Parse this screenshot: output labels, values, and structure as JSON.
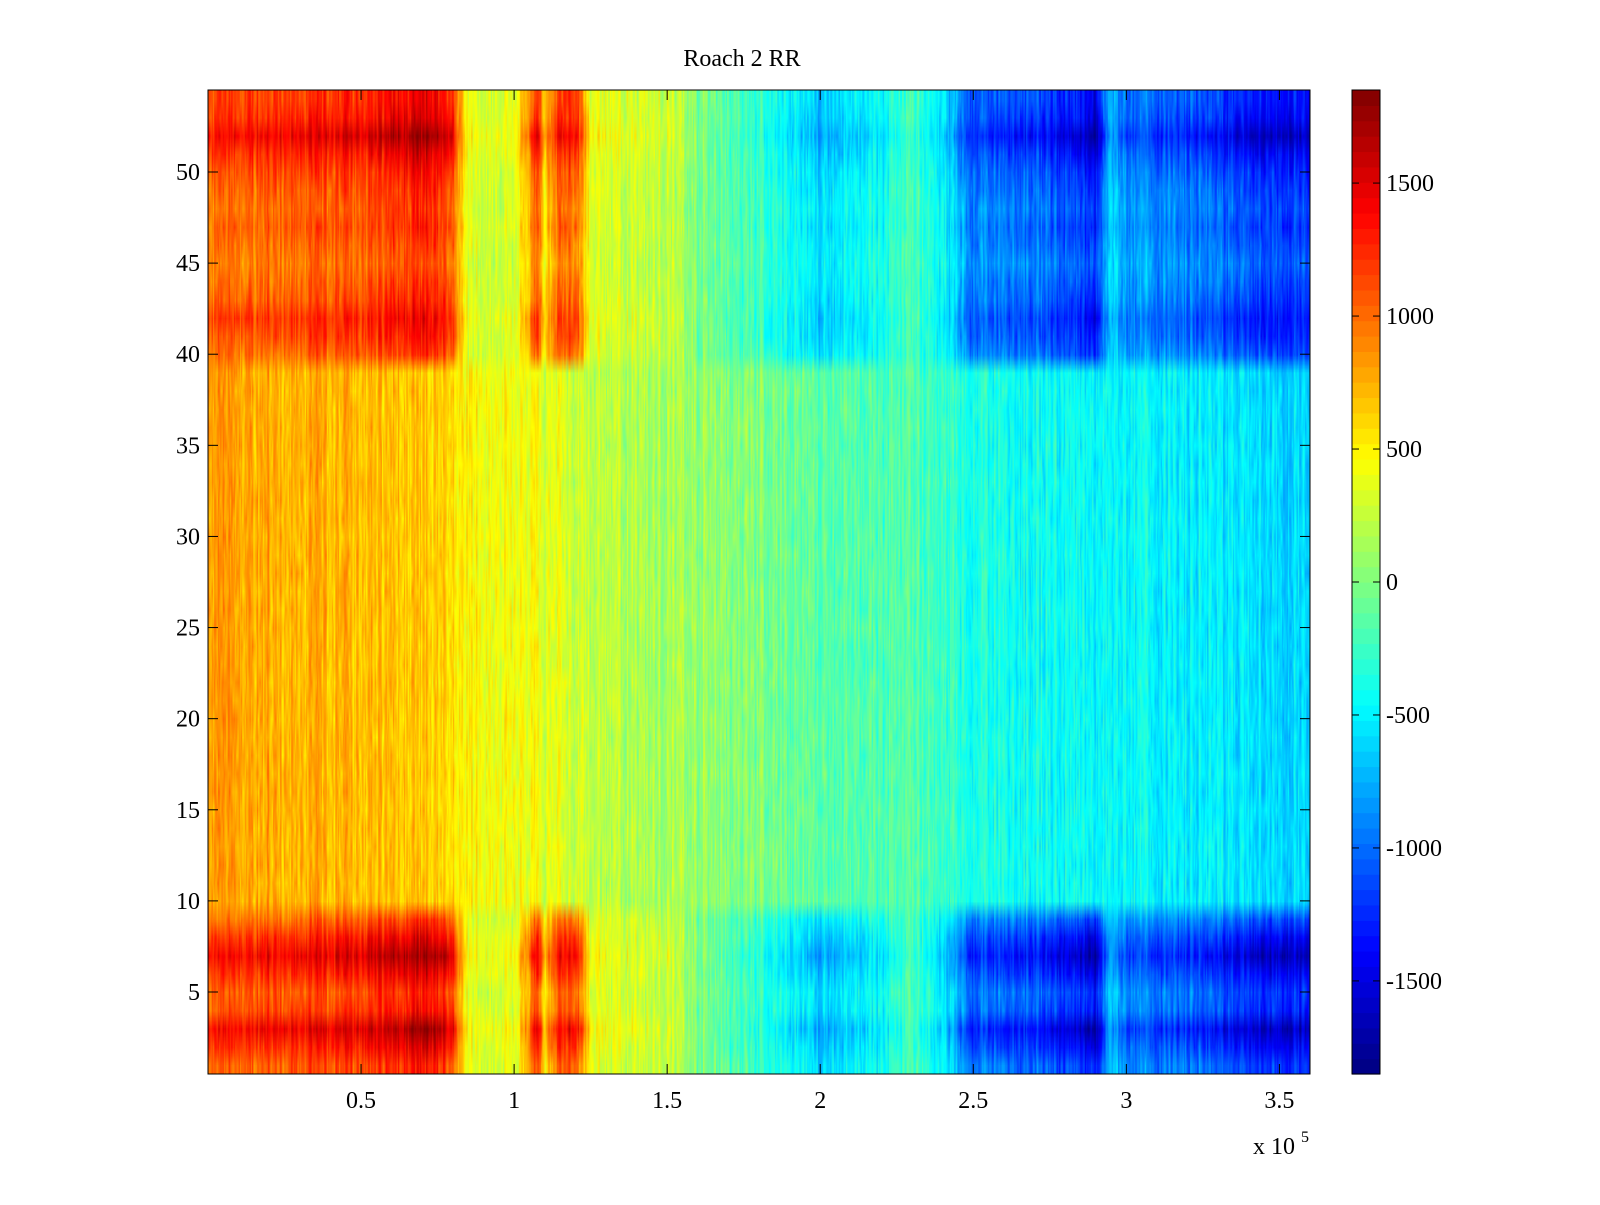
{
  "chart_data": {
    "type": "heatmap",
    "title": "Roach 2 RR",
    "xlabel": "",
    "ylabel": "",
    "x_exponent_label": "x 10",
    "x_exponent_power": "5",
    "xlim": [
      0,
      3.6
    ],
    "ylim": [
      0.5,
      54.5
    ],
    "x_ticks": [
      0.5,
      1,
      1.5,
      2,
      2.5,
      3,
      3.5
    ],
    "x_tick_labels": [
      "0.5",
      "1",
      "1.5",
      "2",
      "2.5",
      "3",
      "3.5"
    ],
    "y_ticks": [
      5,
      10,
      15,
      20,
      25,
      30,
      35,
      40,
      45,
      50
    ],
    "y_tick_labels": [
      "5",
      "10",
      "15",
      "20",
      "25",
      "30",
      "35",
      "40",
      "45",
      "50"
    ],
    "rows": 54,
    "colormap": "jet",
    "clim": [
      -1850,
      1850
    ],
    "colorbar_ticks": [
      1500,
      1000,
      500,
      0,
      -500,
      -1000,
      -1500
    ],
    "colorbar_tick_labels": [
      "1500",
      "1000",
      "500",
      "0",
      "-500",
      "-1000",
      "-1500"
    ],
    "grid": false,
    "column_profile": {
      "x": [
        0,
        0.25,
        0.5,
        0.72,
        0.8,
        0.85,
        1.0,
        1.08,
        1.1,
        1.15,
        1.2,
        1.25,
        1.3,
        1.5,
        1.6,
        1.8,
        2.0,
        2.2,
        2.3,
        2.4,
        2.5,
        2.7,
        2.85,
        2.9,
        2.95,
        3.0,
        3.2,
        3.4,
        3.6
      ],
      "outer_rows": [
        1150,
        1250,
        1300,
        1550,
        1300,
        400,
        350,
        1300,
        700,
        1200,
        1300,
        450,
        350,
        300,
        0,
        -300,
        -650,
        -500,
        -200,
        -550,
        -1100,
        -1150,
        -1400,
        -1550,
        -650,
        -1000,
        -1100,
        -1350,
        -1400
      ],
      "middle_rows": [
        800,
        750,
        700,
        650,
        600,
        500,
        400,
        450,
        350,
        350,
        300,
        250,
        200,
        150,
        100,
        0,
        -100,
        -200,
        -150,
        -250,
        -350,
        -400,
        -450,
        -500,
        -400,
        -450,
        -500,
        -550,
        -600
      ]
    },
    "outer_row_bands": [
      [
        1,
        9
      ],
      [
        40,
        54
      ]
    ],
    "row_weights": {
      "rows": [
        1,
        2,
        3,
        4,
        5,
        6,
        7,
        8,
        9,
        40,
        41,
        42,
        43,
        44,
        45,
        46,
        47,
        48,
        49,
        50,
        51,
        52,
        53,
        54
      ],
      "weights": [
        0.85,
        1.0,
        1.15,
        0.9,
        0.85,
        1.0,
        1.15,
        1.0,
        0.8,
        0.8,
        0.9,
        0.95,
        0.85,
        0.8,
        0.75,
        0.8,
        0.85,
        0.8,
        0.85,
        0.9,
        1.0,
        1.15,
        1.0,
        0.95
      ]
    }
  }
}
